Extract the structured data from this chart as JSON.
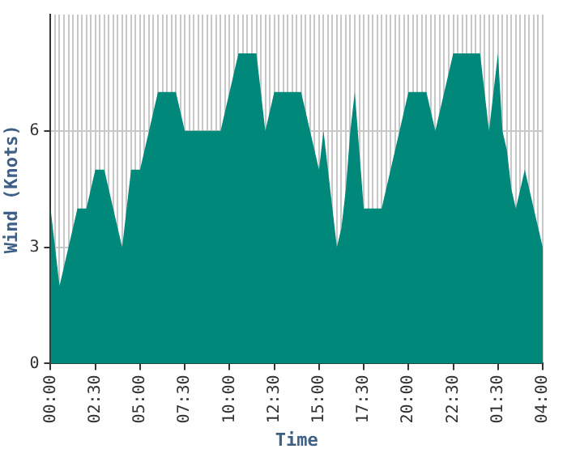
{
  "chart_data": {
    "type": "area",
    "xlabel": "Time",
    "ylabel": "Wind (Knots)",
    "categories": [
      "00:00",
      null,
      null,
      null,
      null,
      null,
      null,
      null,
      null,
      null,
      "02:30",
      null,
      null,
      null,
      null,
      null,
      null,
      null,
      null,
      null,
      "05:00",
      null,
      null,
      null,
      null,
      null,
      null,
      null,
      null,
      null,
      "07:30",
      null,
      null,
      null,
      null,
      null,
      null,
      null,
      null,
      null,
      "10:00",
      null,
      null,
      null,
      null,
      null,
      null,
      null,
      null,
      null,
      "12:30",
      null,
      null,
      null,
      null,
      null,
      null,
      null,
      null,
      null,
      "15:00",
      null,
      null,
      null,
      null,
      null,
      null,
      null,
      null,
      null,
      "17:30",
      null,
      null,
      null,
      null,
      null,
      null,
      null,
      null,
      null,
      "20:00",
      null,
      null,
      null,
      null,
      null,
      null,
      null,
      null,
      null,
      "22:30",
      null,
      null,
      null,
      null,
      null,
      null,
      null,
      null,
      null,
      "01:30",
      null,
      null,
      null,
      null,
      null,
      null,
      null,
      null,
      null,
      "04:00"
    ],
    "series": [
      {
        "color": "#00897b",
        "values": [
          4,
          3,
          2,
          2.5,
          3,
          3.5,
          4,
          4,
          4,
          4.5,
          5,
          5,
          5,
          4.5,
          4,
          3.5,
          3,
          4,
          5,
          5,
          5,
          5.5,
          6,
          6.5,
          7,
          7,
          7,
          7,
          7,
          6.5,
          6,
          6,
          6,
          6,
          6,
          6,
          6,
          6,
          6,
          6.5,
          7,
          7.5,
          8,
          8,
          8,
          8,
          8,
          7,
          6,
          6.5,
          7,
          7,
          7,
          7,
          7,
          7,
          7,
          6.5,
          6,
          5.5,
          5,
          6,
          5,
          4,
          3,
          3.5,
          4.5,
          6,
          7,
          5.5,
          4,
          4,
          4,
          4,
          4,
          4.5,
          5,
          5.5,
          6,
          6.5,
          7,
          7,
          7,
          7,
          7,
          6.5,
          6,
          6.5,
          7,
          7.5,
          8,
          8,
          8,
          8,
          8,
          8,
          8,
          7,
          6,
          7,
          8,
          6,
          5.5,
          4.5,
          4,
          4.5,
          5,
          4.5,
          4,
          3.5,
          3
        ]
      }
    ],
    "ylim": [
      0,
      9
    ],
    "yticks": [
      0,
      3,
      6
    ],
    "grid": true,
    "legend": false,
    "marker": "none"
  }
}
